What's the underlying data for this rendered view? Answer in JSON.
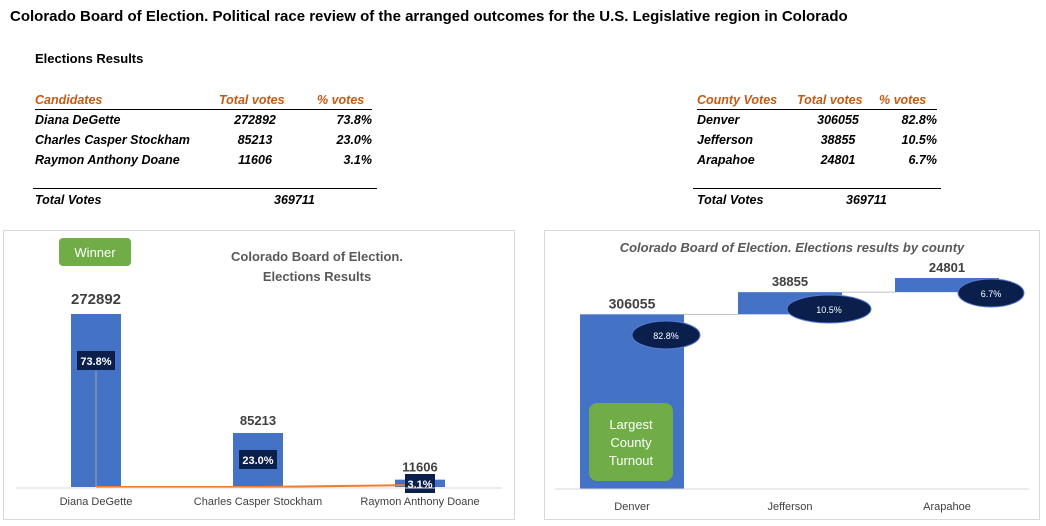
{
  "title": "Colorado Board of Election. Political race review of the arranged outcomes for the U.S. Legislative region in Colorado",
  "section_title": "Elections Results",
  "candidates_table": {
    "headers": [
      "Candidates",
      "Total votes",
      "% votes"
    ],
    "rows": [
      [
        "Diana DeGette",
        "272892",
        "73.8%"
      ],
      [
        "Charles Casper Stockham",
        "85213",
        "23.0%"
      ],
      [
        "Raymon Anthony Doane",
        "11606",
        "3.1%"
      ]
    ],
    "total_label": "Total Votes",
    "total_value": "369711"
  },
  "county_table": {
    "headers": [
      "County Votes",
      "Total votes",
      "% votes"
    ],
    "rows": [
      [
        "Denver",
        "306055",
        "82.8%"
      ],
      [
        "Jefferson",
        "38855",
        "10.5%"
      ],
      [
        "Arapahoe",
        "24801",
        "6.7%"
      ]
    ],
    "total_label": "Total Votes",
    "total_value": "369711"
  },
  "colors": {
    "bar": "#4472c4",
    "label_box": "#0b1f4d",
    "orange": "#ed7d31",
    "header": "#c55a11",
    "green": "#70ad47"
  },
  "chart_data": [
    {
      "type": "bar",
      "title": "Colorado Board of Election. Elections Results",
      "categories": [
        "Diana DeGette",
        "Charles Casper Stockham",
        "Raymon Anthony Doane"
      ],
      "values": [
        272892,
        85213,
        11606
      ],
      "percent_labels": [
        "73.8%",
        "23.0%",
        "3.1%"
      ],
      "annotation": "Winner"
    },
    {
      "type": "bar",
      "subtype": "waterfall",
      "title": "Colorado Board of Election. Elections results by county",
      "categories": [
        "Denver",
        "Jefferson",
        "Arapahoe"
      ],
      "values": [
        306055,
        38855,
        24801
      ],
      "percent_labels": [
        "82.8%",
        "10.5%",
        "6.7%"
      ],
      "annotation": "Largest County Turnout"
    }
  ]
}
